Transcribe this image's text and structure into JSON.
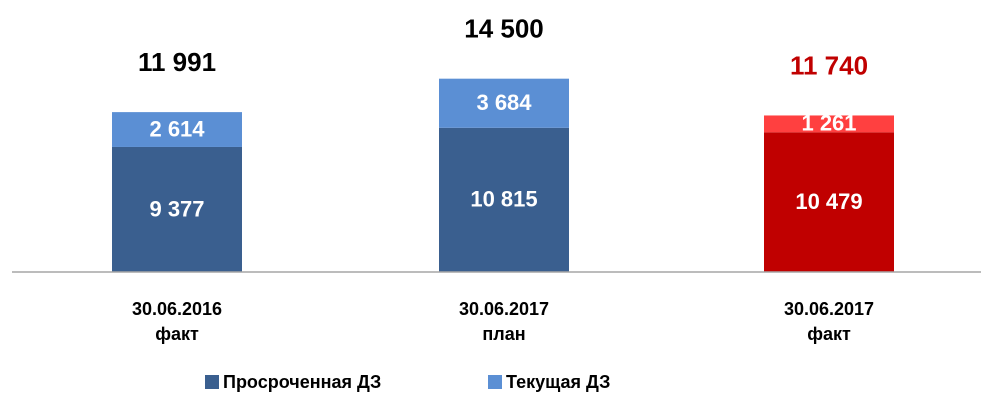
{
  "chart_data": {
    "type": "stacked_bar",
    "categories": [
      [
        "30.06.2016",
        "факт"
      ],
      [
        "30.06.2017",
        "план"
      ],
      [
        "30.06.2017",
        "факт"
      ]
    ],
    "series": [
      {
        "name": "Просроченная ДЗ",
        "color": "#3a5f8f",
        "colors": [
          "#3a5f8f",
          "#3a5f8f",
          "#c00000"
        ],
        "values": [
          9377,
          10815,
          10479
        ],
        "value_labels": [
          "9 377",
          "10 815",
          "10 479"
        ]
      },
      {
        "name": "Текущая ДЗ",
        "color": "#5b8fd4",
        "colors": [
          "#5b8fd4",
          "#5b8fd4",
          "#ff4040"
        ],
        "values": [
          2614,
          3684,
          1261
        ],
        "value_labels": [
          "2 614",
          "3 684",
          "1 261"
        ]
      }
    ],
    "totals": {
      "values": [
        11991,
        14500,
        11740
      ],
      "value_labels": [
        "11 991",
        "14 500",
        "11 740"
      ],
      "colors": [
        "#000000",
        "#000000",
        "#c00000"
      ]
    },
    "ylim": [
      0,
      15000
    ]
  }
}
